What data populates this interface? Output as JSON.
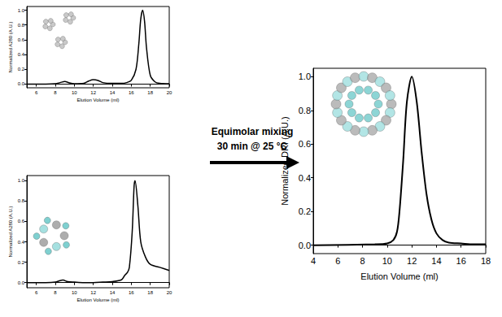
{
  "annotation": [
    "Equimolar mixing",
    "30 min @ 25 °C"
  ],
  "chart_data": [
    {
      "type": "line",
      "x_label": "Elution Volume (ml)",
      "y_label": "Normalized A280 (A.U.)",
      "x": [
        5,
        6,
        7,
        8,
        8.5,
        9,
        9.5,
        10,
        11,
        11.5,
        12,
        12.5,
        13,
        14,
        15,
        15.5,
        16,
        16.5,
        16.8,
        17,
        17.2,
        17.4,
        17.6,
        18,
        18.5,
        19,
        20
      ],
      "values": [
        0,
        0,
        0,
        0.005,
        0.02,
        0.035,
        0.015,
        0.005,
        0.01,
        0.04,
        0.06,
        0.05,
        0.02,
        0.01,
        0.01,
        0.02,
        0.05,
        0.2,
        0.55,
        0.88,
        1.0,
        0.85,
        0.5,
        0.12,
        0.03,
        0.01,
        0.005
      ],
      "color": "#000000",
      "marker": "none",
      "grid": false,
      "xlim": [
        5,
        20
      ],
      "xticks": [
        6,
        8,
        10,
        12,
        14,
        16,
        18,
        20
      ],
      "ylim": [
        -0.05,
        1.05
      ],
      "yticks": [
        {
          "value": 0,
          "label": "0.0"
        },
        {
          "value": 0.2,
          "label": "0.2"
        },
        {
          "value": 0.4,
          "label": "0.4"
        },
        {
          "value": 0.6,
          "label": "0.6"
        },
        {
          "value": 0.8,
          "label": "0.8"
        },
        {
          "value": 1,
          "label": "1.0"
        }
      ]
    },
    {
      "type": "line",
      "x_label": "Elution Volume (ml)",
      "y_label": "Normalized A280 (A.U.)",
      "x": [
        5,
        6,
        7,
        8,
        8.5,
        8.8,
        9.3,
        10,
        11,
        12,
        13,
        14,
        15,
        15.3,
        15.6,
        15.8,
        16.1,
        16.3,
        16.4,
        16.7,
        17,
        17.5,
        18,
        19,
        20
      ],
      "values": [
        0,
        0,
        0,
        0.005,
        0.02,
        0.025,
        0.01,
        0.005,
        0,
        0,
        0.005,
        0.01,
        0.03,
        0.07,
        0.1,
        0.15,
        0.5,
        0.95,
        1.0,
        0.75,
        0.4,
        0.25,
        0.18,
        0.15,
        0.12
      ],
      "color": "#000000",
      "marker": "none",
      "grid": false,
      "xlim": [
        5,
        20
      ],
      "xticks": [
        6,
        8,
        10,
        12,
        14,
        16,
        18,
        20
      ],
      "ylim": [
        -0.05,
        1.05
      ],
      "yticks": [
        {
          "value": 0,
          "label": "0.0"
        },
        {
          "value": 0.2,
          "label": "0.2"
        },
        {
          "value": 0.4,
          "label": "0.4"
        },
        {
          "value": 0.6,
          "label": "0.6"
        },
        {
          "value": 0.8,
          "label": "0.8"
        },
        {
          "value": 1,
          "label": "1.0"
        }
      ]
    },
    {
      "type": "line",
      "x_label": "Elution Volume (ml)",
      "y_label": "Normalized DRI (A.U.)",
      "x": [
        4,
        9,
        10,
        10.5,
        10.8,
        11,
        11.3,
        11.6,
        12,
        12.4,
        12.8,
        13.2,
        13.6,
        14,
        14.5,
        15,
        16,
        17,
        18
      ],
      "values": [
        0,
        0.005,
        0.01,
        0.03,
        0.08,
        0.2,
        0.5,
        0.85,
        1.0,
        0.85,
        0.55,
        0.3,
        0.15,
        0.07,
        0.03,
        0.015,
        0.01,
        0.005,
        0.005
      ],
      "color": "#000000",
      "marker": "none",
      "grid": false,
      "xlim": [
        4,
        18
      ],
      "xticks": [
        4,
        6,
        8,
        10,
        12,
        14,
        16,
        18
      ],
      "ylim": [
        -0.05,
        1.05
      ],
      "yticks": [
        {
          "value": 0,
          "label": "0.0"
        },
        {
          "value": 0.2,
          "label": "0.2"
        },
        {
          "value": 0.4,
          "label": "0.4"
        },
        {
          "value": 0.6,
          "label": "0.6"
        },
        {
          "value": 0.8,
          "label": "0.8"
        },
        {
          "value": 1,
          "label": "1.0"
        }
      ]
    }
  ]
}
